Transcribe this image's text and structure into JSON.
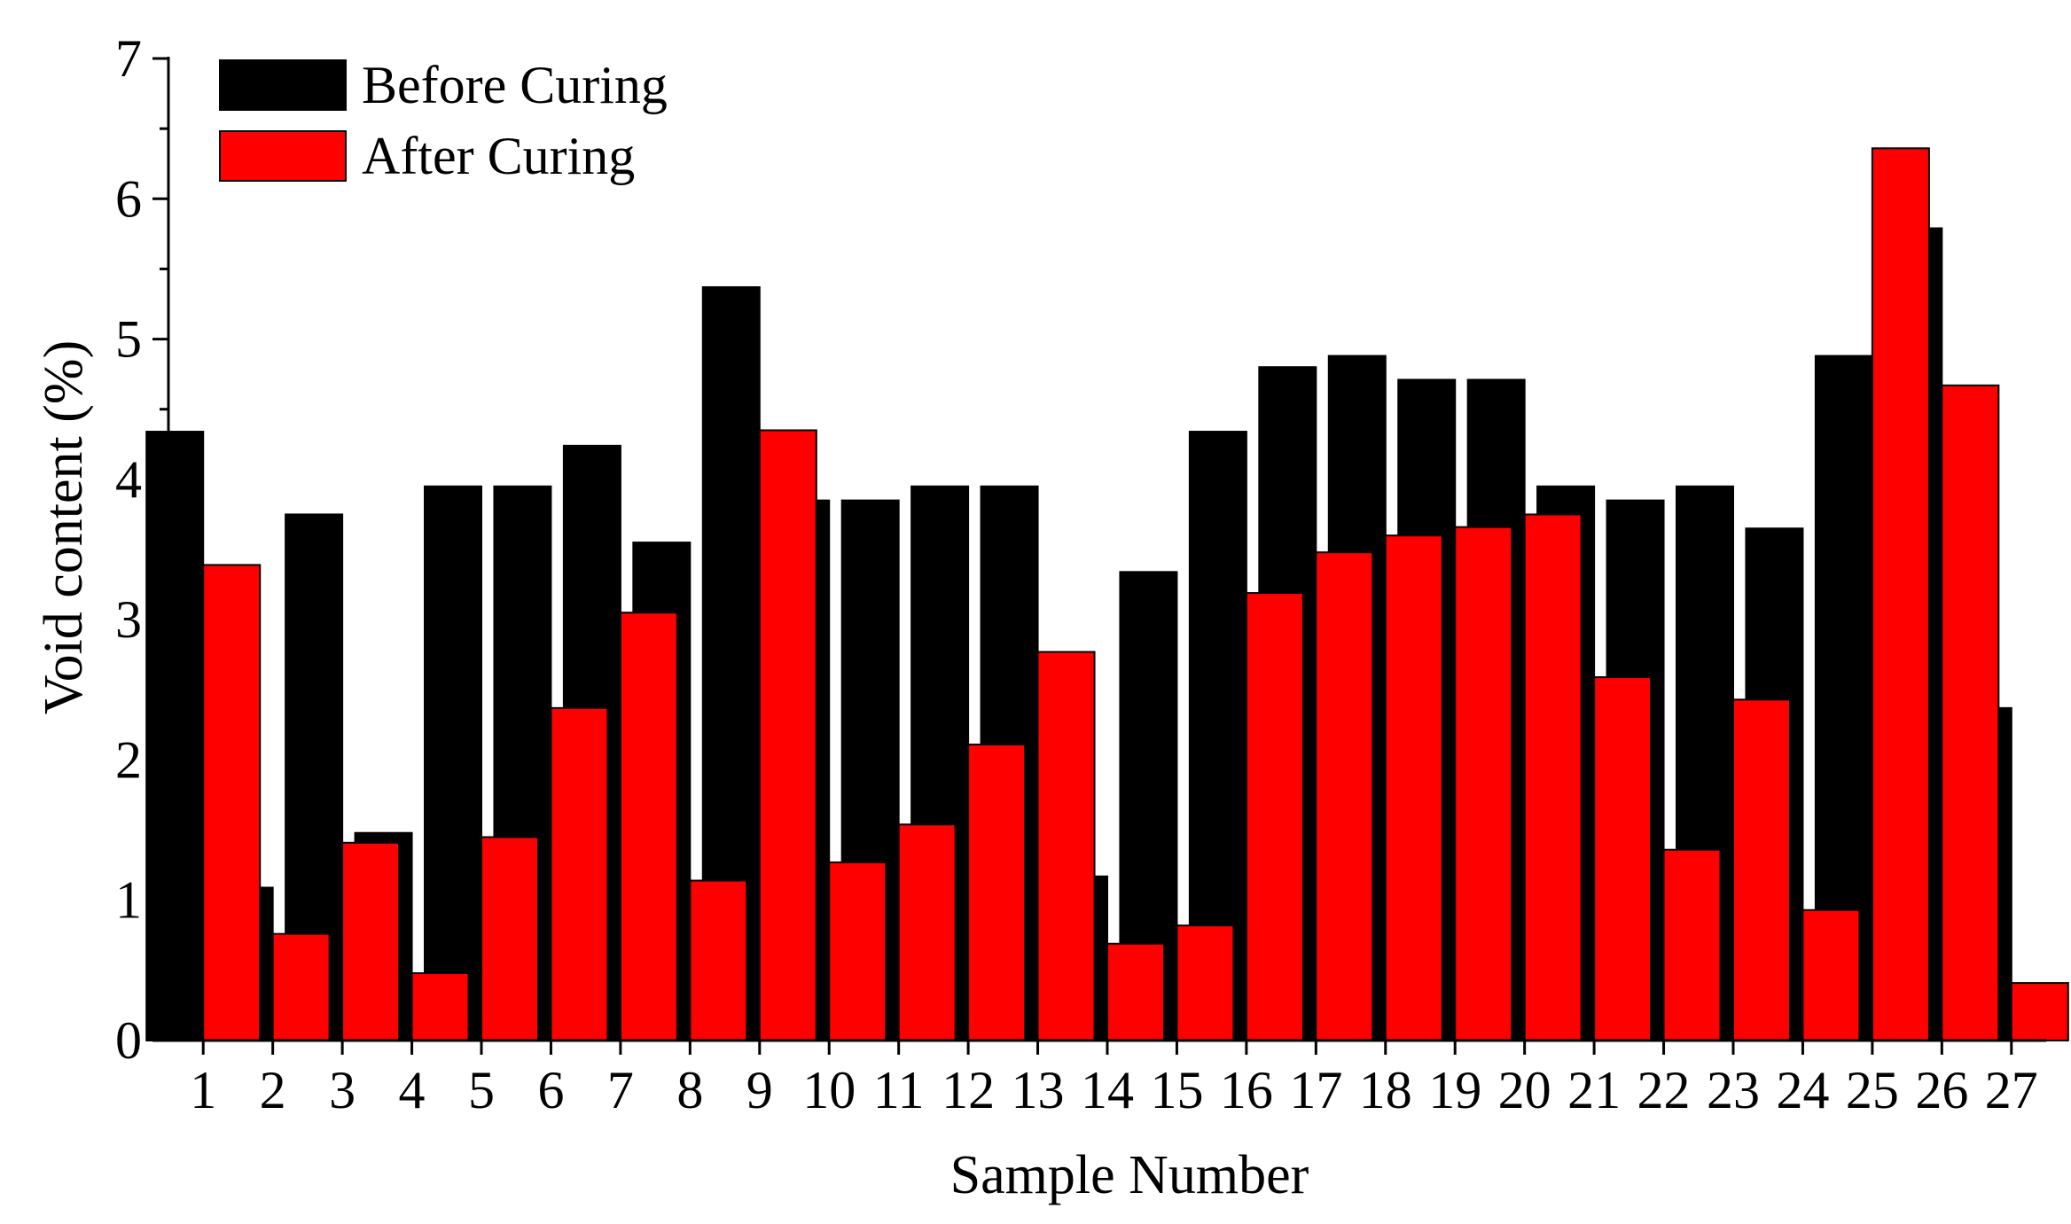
{
  "chart_data": {
    "type": "bar",
    "xlabel": "Sample Number",
    "ylabel": "Void content (%)",
    "ylim": [
      0,
      7
    ],
    "yticks": [
      0,
      1,
      2,
      3,
      4,
      5,
      6,
      7
    ],
    "categories": [
      "1",
      "2",
      "3",
      "4",
      "5",
      "6",
      "7",
      "8",
      "9",
      "10",
      "11",
      "12",
      "13",
      "14",
      "15",
      "16",
      "17",
      "18",
      "19",
      "20",
      "21",
      "22",
      "23",
      "24",
      "25",
      "26",
      "27"
    ],
    "series": [
      {
        "name": "Before Curing",
        "color": "#000000",
        "values": [
          4.34,
          1.09,
          3.75,
          1.48,
          3.95,
          3.95,
          4.24,
          3.55,
          5.37,
          3.85,
          3.85,
          3.95,
          3.95,
          1.17,
          3.34,
          4.34,
          4.8,
          4.88,
          4.71,
          4.71,
          3.95,
          3.85,
          3.95,
          3.65,
          4.88,
          5.79,
          2.37
        ]
      },
      {
        "name": "After Curing",
        "color": "#ff0000",
        "values": [
          3.39,
          0.76,
          1.41,
          0.48,
          1.45,
          2.37,
          3.05,
          1.14,
          4.35,
          1.27,
          1.54,
          2.11,
          2.77,
          0.69,
          0.82,
          3.19,
          3.48,
          3.6,
          3.66,
          3.75,
          2.59,
          1.36,
          2.43,
          0.93,
          6.36,
          4.67,
          0.41
        ]
      }
    ],
    "legend": {
      "position": "top-left",
      "border": false
    },
    "grid": false
  }
}
